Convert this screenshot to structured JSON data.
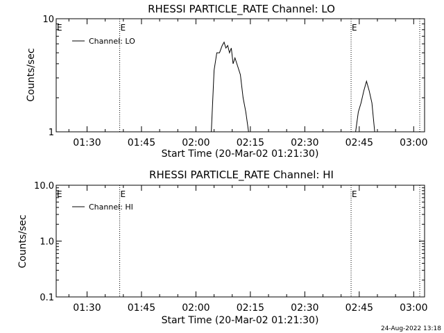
{
  "footer": {
    "timestamp": "24-Aug-2022 13:18"
  },
  "chart_data": [
    {
      "type": "line",
      "title": "RHESSI PARTICLE_RATE Channel: LO",
      "xlabel": "Start Time (20-Mar-02 01:21:30)",
      "ylabel": "Counts/sec",
      "y_scale": "log",
      "ylim": [
        1,
        10
      ],
      "y_ticks": [
        {
          "value": 1,
          "label": "1"
        },
        {
          "value": 10,
          "label": "10"
        }
      ],
      "xlim": [
        "01:21:30",
        "03:03:00"
      ],
      "x_ticks": [
        "01:30",
        "01:45",
        "02:00",
        "02:15",
        "02:30",
        "02:45",
        "03:00"
      ],
      "x_minor_ticks": [
        "01:25",
        "01:35",
        "01:40",
        "01:50",
        "01:55",
        "02:05",
        "02:10",
        "02:20",
        "02:25",
        "02:35",
        "02:40",
        "02:50",
        "02:55"
      ],
      "markers": [
        {
          "time": "01:39:00",
          "label": "E"
        },
        {
          "time": "02:42:45",
          "label": "E"
        },
        {
          "time": "03:01:40",
          "label": ""
        }
      ],
      "legend": {
        "position": "top-left",
        "entries": [
          "Channel: LO"
        ]
      },
      "series": [
        {
          "name": "Channel: LO",
          "x": [
            "02:04:15",
            "02:05:00",
            "02:05:45",
            "02:06:30",
            "02:07:15",
            "02:07:45",
            "02:08:15",
            "02:08:45",
            "02:09:15",
            "02:09:45",
            "02:10:15",
            "02:10:45",
            "02:11:30",
            "02:12:15",
            "02:13:00",
            "02:13:45",
            "02:14:30"
          ],
          "y": [
            1,
            3.5,
            5,
            5,
            5.8,
            6.2,
            5.5,
            5.8,
            5,
            5.5,
            4,
            4.5,
            3.8,
            3.2,
            2,
            1.5,
            1
          ],
          "segments_x": [
            [
              "02:44:00",
              "02:44:45",
              "02:45:30",
              "02:46:15",
              "02:47:00",
              "02:47:45",
              "02:48:30",
              "02:49:15"
            ]
          ],
          "segments_y": [
            [
              1,
              1.5,
              1.8,
              2.3,
              2.8,
              2.3,
              1.8,
              1
            ]
          ]
        }
      ]
    },
    {
      "type": "line",
      "title": "RHESSI PARTICLE_RATE Channel: HI",
      "xlabel": "Start Time (20-Mar-02 01:21:30)",
      "ylabel": "Counts/sec",
      "y_scale": "log",
      "ylim": [
        0.1,
        10
      ],
      "y_ticks": [
        {
          "value": 0.1,
          "label": "0.1"
        },
        {
          "value": 1,
          "label": "1.0"
        },
        {
          "value": 10,
          "label": "10.0"
        }
      ],
      "xlim": [
        "01:21:30",
        "03:03:00"
      ],
      "x_ticks": [
        "01:30",
        "01:45",
        "02:00",
        "02:15",
        "02:30",
        "02:45",
        "03:00"
      ],
      "x_minor_ticks": [
        "01:25",
        "01:35",
        "01:40",
        "01:50",
        "01:55",
        "02:05",
        "02:10",
        "02:20",
        "02:25",
        "02:35",
        "02:40",
        "02:50",
        "02:55"
      ],
      "markers": [
        {
          "time": "01:39:00",
          "label": "E"
        },
        {
          "time": "02:42:45",
          "label": "E"
        },
        {
          "time": "03:01:40",
          "label": ""
        }
      ],
      "legend": {
        "position": "top-left",
        "entries": [
          "Channel: HI"
        ]
      },
      "series": [
        {
          "name": "Channel: HI",
          "x": [],
          "y": []
        }
      ]
    }
  ]
}
